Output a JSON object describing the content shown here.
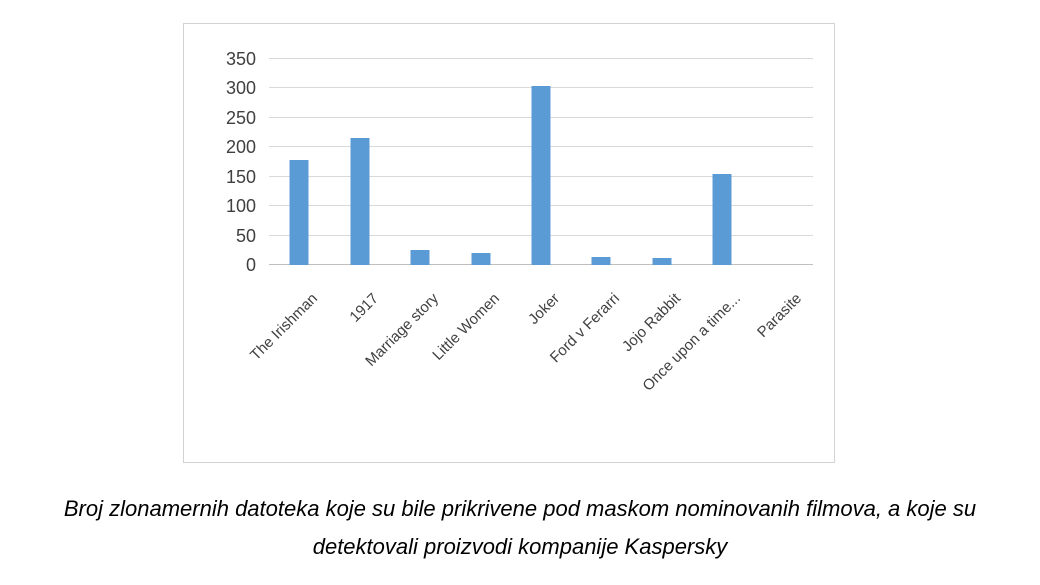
{
  "figure": {
    "caption_line1": "Broj zlonamernih datoteka koje su bile prikrivene pod maskom nominovanih filmova, a koje su",
    "caption_line2": "detektovali proizvodi kompanije Kaspersky"
  },
  "chart_data": {
    "type": "bar",
    "title": "",
    "xlabel": "",
    "ylabel": "",
    "categories": [
      "The Irishman",
      "1917",
      "Marriage story",
      "Little Women",
      "Joker",
      "Ford v Ferarri",
      "Jojo Rabbit",
      "Once upon a time...",
      "Parasite"
    ],
    "values": [
      179,
      215,
      26,
      21,
      304,
      13,
      12,
      155,
      0
    ],
    "ylim": [
      0,
      350
    ],
    "yticks": [
      0,
      50,
      100,
      150,
      200,
      250,
      300,
      350
    ],
    "grid": true,
    "legend_position": "none",
    "x_label_rotation_deg": 45,
    "bar_color": "#5B9BD5",
    "gridline_color": "#D9D9D9",
    "axis_line_color": "#BFBFBF",
    "tick_label_color": "#404040"
  }
}
